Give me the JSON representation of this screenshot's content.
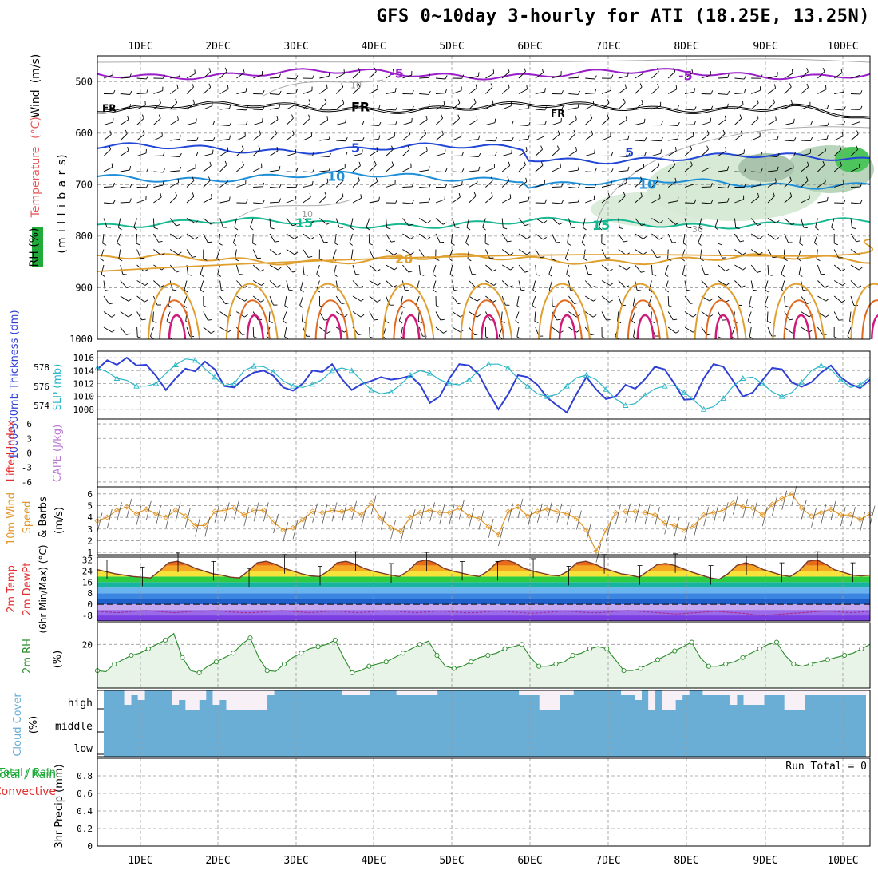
{
  "title": "GFS 0~10day 3-hourly for ATI (18.25E, 13.25N)",
  "colors": {
    "temperature_label": "#e65a5a",
    "wind_label": "#e65a5a",
    "rh_label": "#1faa3a",
    "thickness": "#2e3fd6",
    "slp": "#2bb7c7",
    "lifted_index": "#e03030",
    "cape": "#b97ad0",
    "wind10m": "#e0962a",
    "rh2m": "#2a8c2a",
    "cloud": "#6aaed6",
    "precip_total": "#1faa3a",
    "precip_conv": "#e03030"
  },
  "chart_data": [
    {
      "type": "line",
      "panel": "upper-air",
      "x_ticks": [
        "1DEC",
        "2DEC",
        "3DEC",
        "4DEC",
        "5DEC",
        "6DEC",
        "7DEC",
        "8DEC",
        "9DEC",
        "10DEC"
      ],
      "ylabel_parts": [
        "RH (%)",
        "Temperature",
        "(°C)",
        "Wind",
        "(m/s)",
        "(m i l l i b a r s)"
      ],
      "y_ticks": [
        "500",
        "600",
        "700",
        "800",
        "900",
        "1000"
      ],
      "ylim": [
        450,
        1000
      ],
      "isotherms": [
        {
          "label": "-5",
          "pressure": 485,
          "color": "#9a1fc9"
        },
        {
          "label": "FR",
          "pressure": 550,
          "color": "#000000"
        },
        {
          "label": "5",
          "pressure": 630,
          "color": "#2246d6"
        },
        {
          "label": "10",
          "pressure": 685,
          "color": "#1e8fd8"
        },
        {
          "label": "15",
          "pressure": 775,
          "color": "#16b892"
        },
        {
          "label": "20",
          "pressure": 845,
          "color": "#e0a030"
        }
      ],
      "rh_contour_labels": [
        "10",
        "10",
        "30"
      ]
    },
    {
      "type": "line",
      "panel": "thickness-slp",
      "ylabel_left": "1000-500mb Thickness (dm)",
      "ylabel_right": "SLP (mb)",
      "y_ticks_left": [
        "578",
        "576",
        "574"
      ],
      "y_ticks_right": [
        "1016",
        "1014",
        "1012",
        "1010",
        "1008"
      ],
      "series": [
        {
          "name": "Thickness",
          "values": [
            1014.2,
            1015.6,
            1014.9,
            1016.0,
            1014.8,
            1014.9,
            1013.2,
            1011.0,
            1012.8,
            1014.3,
            1013.9,
            1015.4,
            1014.2,
            1011.6,
            1011.4,
            1012.8,
            1013.7,
            1014.0,
            1013.2,
            1011.4,
            1010.9,
            1012.0,
            1014.0,
            1013.8,
            1015.0,
            1012.7,
            1011.0,
            1011.9,
            1012.4,
            1013.0,
            1012.6,
            1012.8,
            1013.2,
            1011.8,
            1009.0,
            1010.0,
            1012.8,
            1015.0,
            1014.8,
            1013.4,
            1010.6,
            1008.0,
            1010.3,
            1013.3,
            1013.0,
            1011.8,
            1009.8,
            1008.6,
            1007.5,
            1010.4,
            1013.0,
            1011.1,
            1009.6,
            1010.0,
            1011.8,
            1011.2,
            1012.7,
            1014.6,
            1014.2,
            1012.0,
            1009.5,
            1009.6,
            1012.8,
            1015.0,
            1014.6,
            1012.4,
            1010.0,
            1010.6,
            1012.5,
            1014.4,
            1014.2,
            1012.2,
            1011.5,
            1012.2,
            1013.7,
            1014.8,
            1013.0,
            1011.9,
            1011.3,
            1012.6
          ]
        },
        {
          "name": "SLP",
          "values": [
            1014.4,
            1013.8,
            1012.8,
            1012.5,
            1011.6,
            1011.6,
            1012.0,
            1013.6,
            1014.9,
            1015.8,
            1015.6,
            1014.3,
            1013.0,
            1011.7,
            1012.0,
            1014.0,
            1014.7,
            1014.6,
            1013.8,
            1012.4,
            1011.6,
            1011.4,
            1011.9,
            1012.6,
            1014.0,
            1014.4,
            1014.0,
            1012.5,
            1011.0,
            1010.4,
            1010.7,
            1011.8,
            1013.3,
            1014.0,
            1013.6,
            1012.6,
            1012.0,
            1011.8,
            1012.6,
            1014.0,
            1015.0,
            1015.0,
            1014.4,
            1012.8,
            1011.6,
            1010.4,
            1010.0,
            1010.3,
            1011.6,
            1012.9,
            1013.3,
            1012.6,
            1011.1,
            1009.6,
            1008.6,
            1008.9,
            1010.2,
            1011.2,
            1011.6,
            1011.7,
            1010.6,
            1009.4,
            1008.0,
            1008.4,
            1009.7,
            1011.6,
            1012.8,
            1013.0,
            1012.0,
            1010.7,
            1010.0,
            1010.6,
            1012.2,
            1014.0,
            1014.8,
            1014.2,
            1012.6,
            1011.4,
            1011.8,
            1013.0
          ]
        }
      ]
    },
    {
      "type": "line",
      "panel": "lifted-index-cape",
      "ylabel_left": "Lifted Index",
      "ylabel_right": "CAPE (J/kg)",
      "y_ticks": [
        "6",
        "3",
        "0",
        "-3",
        "-6"
      ],
      "series": [
        {
          "name": "Lifted Index",
          "values": [
            0
          ]
        }
      ]
    },
    {
      "type": "line",
      "panel": "wind10m",
      "ylabel_parts": [
        "10m Wind",
        "Speed",
        "& Barbs",
        "(m/s)"
      ],
      "y_ticks": [
        "6",
        "5",
        "4",
        "3",
        "2",
        "1"
      ],
      "ylim": [
        1,
        6.5
      ],
      "series": [
        {
          "name": "10m Wind Speed",
          "values": [
            3.7,
            4.0,
            4.6,
            4.9,
            4.3,
            4.7,
            4.3,
            4.0,
            4.6,
            4.1,
            3.3,
            3.3,
            4.5,
            4.6,
            4.8,
            4.2,
            4.6,
            4.6,
            3.6,
            2.9,
            3.1,
            3.8,
            4.5,
            4.4,
            4.6,
            4.5,
            4.7,
            4.2,
            5.2,
            3.9,
            3.1,
            2.8,
            4.0,
            4.4,
            4.6,
            4.4,
            4.4,
            4.8,
            4.1,
            3.9,
            3.2,
            2.5,
            4.5,
            4.9,
            4.1,
            4.5,
            4.7,
            4.5,
            4.3,
            3.9,
            2.9,
            1.1,
            2.9,
            4.4,
            4.5,
            4.5,
            4.4,
            4.2,
            3.5,
            3.3,
            2.9,
            3.3,
            4.2,
            4.4,
            4.6,
            5.2,
            4.9,
            4.8,
            4.2,
            5.1,
            5.6,
            6.0,
            4.8,
            4.1,
            4.4,
            4.7,
            4.2,
            4.2,
            3.8,
            4.3
          ]
        }
      ]
    },
    {
      "type": "area",
      "panel": "temp2m",
      "ylabel_parts": [
        "2m Temp",
        "2m DewPt",
        "(6hr Min/Max) (°C)"
      ],
      "y_ticks": [
        "32",
        "24",
        "16",
        "8",
        "0",
        "-8"
      ],
      "ylim": [
        -12,
        34
      ],
      "series": [
        {
          "name": "2m Temp",
          "values": [
            25,
            23.5,
            22,
            21,
            20,
            19.5,
            19,
            24,
            30,
            31,
            29,
            26,
            24,
            22,
            21,
            19.5,
            19,
            24,
            30,
            31,
            29,
            26,
            24,
            22,
            20.5,
            20,
            24,
            30,
            31,
            29,
            26,
            24,
            22.5,
            21,
            20,
            24,
            30.5,
            32,
            30,
            26,
            24,
            22.5,
            21,
            20,
            24,
            30.5,
            32,
            30,
            26,
            24,
            22.5,
            21,
            20.5,
            24,
            30,
            31,
            29,
            26,
            24,
            22,
            21,
            19.5,
            24,
            28.5,
            29.5,
            28,
            25.5,
            23,
            21,
            19,
            18,
            22,
            28,
            30,
            28,
            25,
            23,
            21,
            20,
            24,
            31,
            32,
            29,
            25,
            23,
            21,
            20.5,
            21
          ]
        },
        {
          "name": "2m DewPt",
          "values": [
            -5,
            -5.5,
            -6,
            -5.5,
            -5,
            -4.5,
            -5,
            -5.5,
            -6,
            -5.5,
            -5,
            -5,
            -4.5,
            -5,
            -5.5,
            -6,
            -6,
            -5.5,
            -5,
            -4.5,
            -5,
            -5.5,
            -6,
            -5.5,
            -5,
            -5,
            -5.5,
            -6,
            -5.5,
            -5,
            -4.5,
            -5,
            -5.5,
            -6,
            -5.5,
            -5,
            -5,
            -5.5,
            -6,
            -6,
            -5.5,
            -5,
            -5,
            -5.5,
            -6,
            -6.5,
            -6,
            -5.5,
            -5,
            -5,
            -5.5,
            -6,
            -6,
            -5.5,
            -5,
            -4.5,
            -5,
            -5.5,
            -6,
            -6.5,
            -7,
            -6.5,
            -6,
            -5.5,
            -5,
            -5.5,
            -6,
            -6.5,
            -7.5,
            -8,
            -7.5,
            -7,
            -6.5,
            -6,
            -5.5,
            -5,
            -5,
            -5.5,
            -6,
            -5.5,
            -5
          ]
        }
      ]
    },
    {
      "type": "line",
      "panel": "rh2m",
      "ylabel_parts": [
        "2m RH",
        "(%)"
      ],
      "y_ticks": [
        "20"
      ],
      "ylim": [
        0,
        30
      ],
      "series": [
        {
          "name": "2m RH",
          "values": [
            8,
            7.5,
            11,
            13,
            15,
            16,
            18,
            20,
            22,
            25,
            14,
            8,
            7,
            10,
            12,
            14,
            16,
            20,
            23,
            14,
            8,
            7.6,
            11,
            14,
            16,
            18,
            19,
            20,
            22,
            14,
            7,
            8,
            10,
            11,
            12,
            14,
            16,
            18,
            20,
            21.5,
            15,
            10,
            9,
            10,
            12,
            14,
            15,
            16,
            18,
            19,
            20,
            14,
            10,
            10,
            11,
            12,
            15,
            16,
            18,
            19,
            18,
            13,
            8,
            8,
            9,
            11,
            13,
            15,
            17,
            19,
            21,
            14,
            10,
            10,
            11,
            12,
            14,
            16,
            18,
            20,
            21,
            15,
            11,
            10,
            11,
            12,
            13,
            14,
            15,
            16,
            18,
            20
          ]
        }
      ]
    },
    {
      "type": "bar",
      "panel": "cloud-cover",
      "ylabel_parts": [
        "Cloud Cover",
        "(%)"
      ],
      "y_ticks": [
        "high",
        "middle",
        "low"
      ],
      "series": [
        {
          "name": "high cloud",
          "values": [
            0,
            0,
            0,
            3,
            1,
            2,
            0,
            0,
            0,
            0,
            3,
            2,
            4,
            4,
            2,
            0,
            3,
            2,
            4,
            4,
            4,
            4,
            4,
            4,
            1,
            0,
            0,
            0,
            0,
            0,
            0,
            0,
            0,
            0,
            0,
            1,
            1,
            1,
            1,
            0,
            0,
            0,
            0,
            1,
            1,
            1,
            1,
            1,
            1,
            0,
            0,
            0,
            0,
            0,
            0,
            0,
            0,
            0,
            0,
            0,
            0,
            1,
            1,
            1,
            4,
            4,
            4,
            1,
            1,
            0,
            0,
            0,
            0,
            0,
            0,
            0,
            1,
            1,
            2,
            0,
            4,
            0,
            4,
            4,
            2,
            1,
            0,
            0,
            1,
            1,
            1,
            1,
            3,
            1,
            3,
            3,
            3,
            1,
            1,
            1,
            4,
            4,
            4,
            1,
            1,
            1,
            1,
            1,
            1,
            1,
            1,
            1
          ]
        }
      ]
    },
    {
      "type": "bar",
      "panel": "precip",
      "ylabel_parts": [
        "3hr Precip (mm)",
        "Total / Rain",
        "Convective"
      ],
      "y_ticks": [
        "0.8",
        "0.6",
        "0.4",
        "0.2",
        "0"
      ],
      "ylim": [
        0,
        1
      ],
      "run_total": "Run Total = 0",
      "series": [
        {
          "name": "Total",
          "values": []
        }
      ]
    }
  ]
}
